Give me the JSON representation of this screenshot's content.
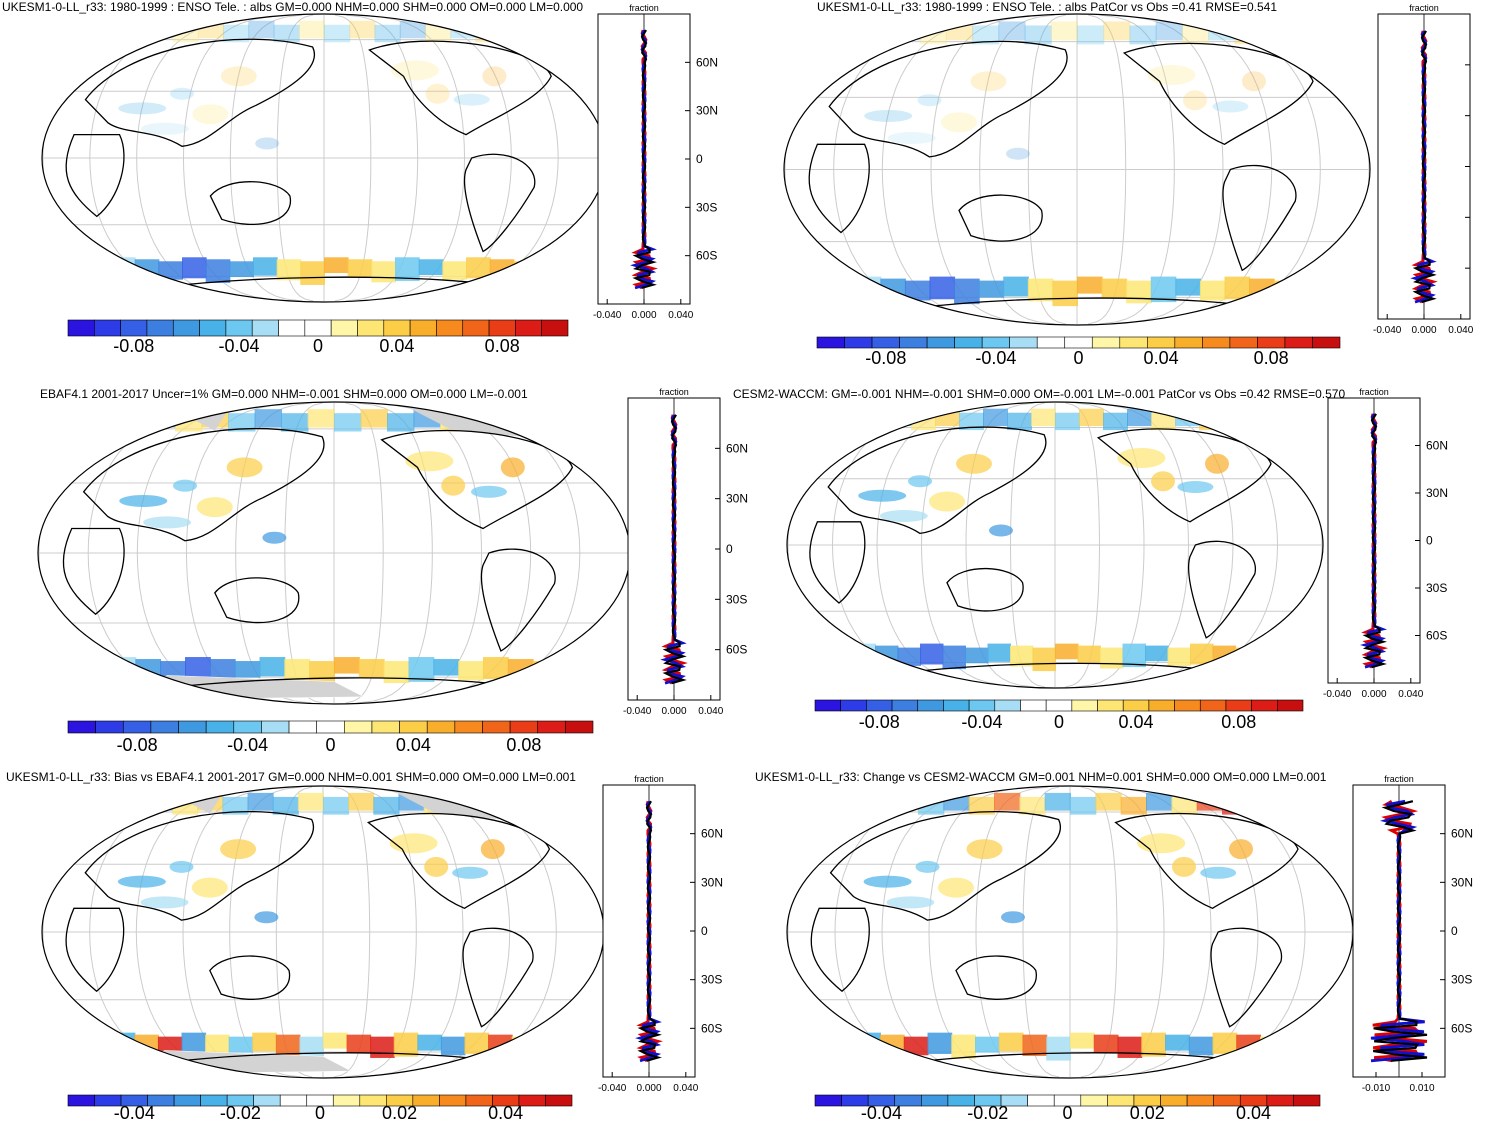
{
  "figure": {
    "panels": [
      {
        "id": "p1",
        "title": "UKESM1-0-LL_r33: 1980-1999 : ENSO Tele. : albs GM=0.000 NHM=0.000 SHM=0.000 OM=0.000 LM=0.000",
        "zonal_title": "fraction",
        "lat_labels": [
          "60N",
          "30N",
          "0",
          "30S",
          "60S"
        ],
        "x_ticks": [
          "-0.040",
          "0.000",
          "0.040"
        ],
        "colorbar_labels": [
          "-0.08",
          "-0.04",
          "0",
          "0.04",
          "0.08"
        ],
        "has_missing_mask": false
      },
      {
        "id": "p2",
        "title": "UKESM1-0-LL_r33: 1980-1999 : ENSO Tele. : albs PatCor vs Obs =0.41 RMSE=0.541",
        "zonal_title": "fraction",
        "lat_labels": [],
        "x_ticks": [
          "-0.040",
          "0.000",
          "0.040"
        ],
        "colorbar_labels": [
          "-0.08",
          "-0.04",
          "0",
          "0.04",
          "0.08"
        ],
        "has_missing_mask": false
      },
      {
        "id": "p3",
        "title": "EBAF4.1 2001-2017 Uncer=1% GM=0.000 NHM=-0.001 SHM=0.000 OM=0.000 LM=-0.001",
        "zonal_title": "fraction",
        "lat_labels": [
          "60N",
          "30N",
          "0",
          "30S",
          "60S"
        ],
        "x_ticks": [
          "-0.040",
          "0.000",
          "0.040"
        ],
        "colorbar_labels": [
          "-0.08",
          "-0.04",
          "0",
          "0.04",
          "0.08"
        ],
        "has_missing_mask": true
      },
      {
        "id": "p4",
        "title": "CESM2-WACCM: GM=-0.001 NHM=-0.001 SHM=0.000 OM=-0.001 LM=-0.001 PatCor vs Obs =0.42 RMSE=0.570",
        "zonal_title": "fraction",
        "lat_labels": [
          "60N",
          "30N",
          "0",
          "30S",
          "60S"
        ],
        "x_ticks": [
          "-0.040",
          "0.000",
          "0.040"
        ],
        "colorbar_labels": [
          "-0.08",
          "-0.04",
          "0",
          "0.04",
          "0.08"
        ],
        "has_missing_mask": false
      },
      {
        "id": "p5",
        "title": "UKESM1-0-LL_r33: Bias vs EBAF4.1 2001-2017 GM=0.000 NHM=0.001 SHM=0.000 OM=0.000 LM=0.001",
        "zonal_title": "fraction",
        "lat_labels": [
          "60N",
          "30N",
          "0",
          "30S",
          "60S"
        ],
        "x_ticks": [
          "-0.040",
          "0.000",
          "0.040"
        ],
        "colorbar_labels": [
          "-0.04",
          "-0.02",
          "0",
          "0.02",
          "0.04"
        ],
        "has_missing_mask": true
      },
      {
        "id": "p6",
        "title": "UKESM1-0-LL_r33: Change vs CESM2-WACCM GM=0.001 NHM=0.001 SHM=0.000 OM=0.000 LM=0.001",
        "zonal_title": "fraction",
        "lat_labels": [
          "60N",
          "30N",
          "0",
          "30S",
          "60S"
        ],
        "x_ticks": [
          "-0.010",
          "0.010"
        ],
        "colorbar_labels": [
          "-0.04",
          "-0.02",
          "0",
          "0.02",
          "0.04"
        ],
        "has_missing_mask": false
      }
    ],
    "colors": {
      "palette": [
        "#2b14e0",
        "#2e3ce8",
        "#3560e6",
        "#3c7fe0",
        "#3f99e0",
        "#47b1e8",
        "#6cc8f0",
        "#a8def5",
        "#ffffff",
        "#ffffff",
        "#fff6a8",
        "#fde673",
        "#fccd46",
        "#f9ae2b",
        "#f68a1f",
        "#f0651a",
        "#e83d17",
        "#dc1c16",
        "#c80f0f"
      ],
      "land_missing": "#d3d3d3",
      "zonal_model": "#e00000",
      "zonal_obs": "#1010d0",
      "zonal_mean": "#000000"
    }
  }
}
